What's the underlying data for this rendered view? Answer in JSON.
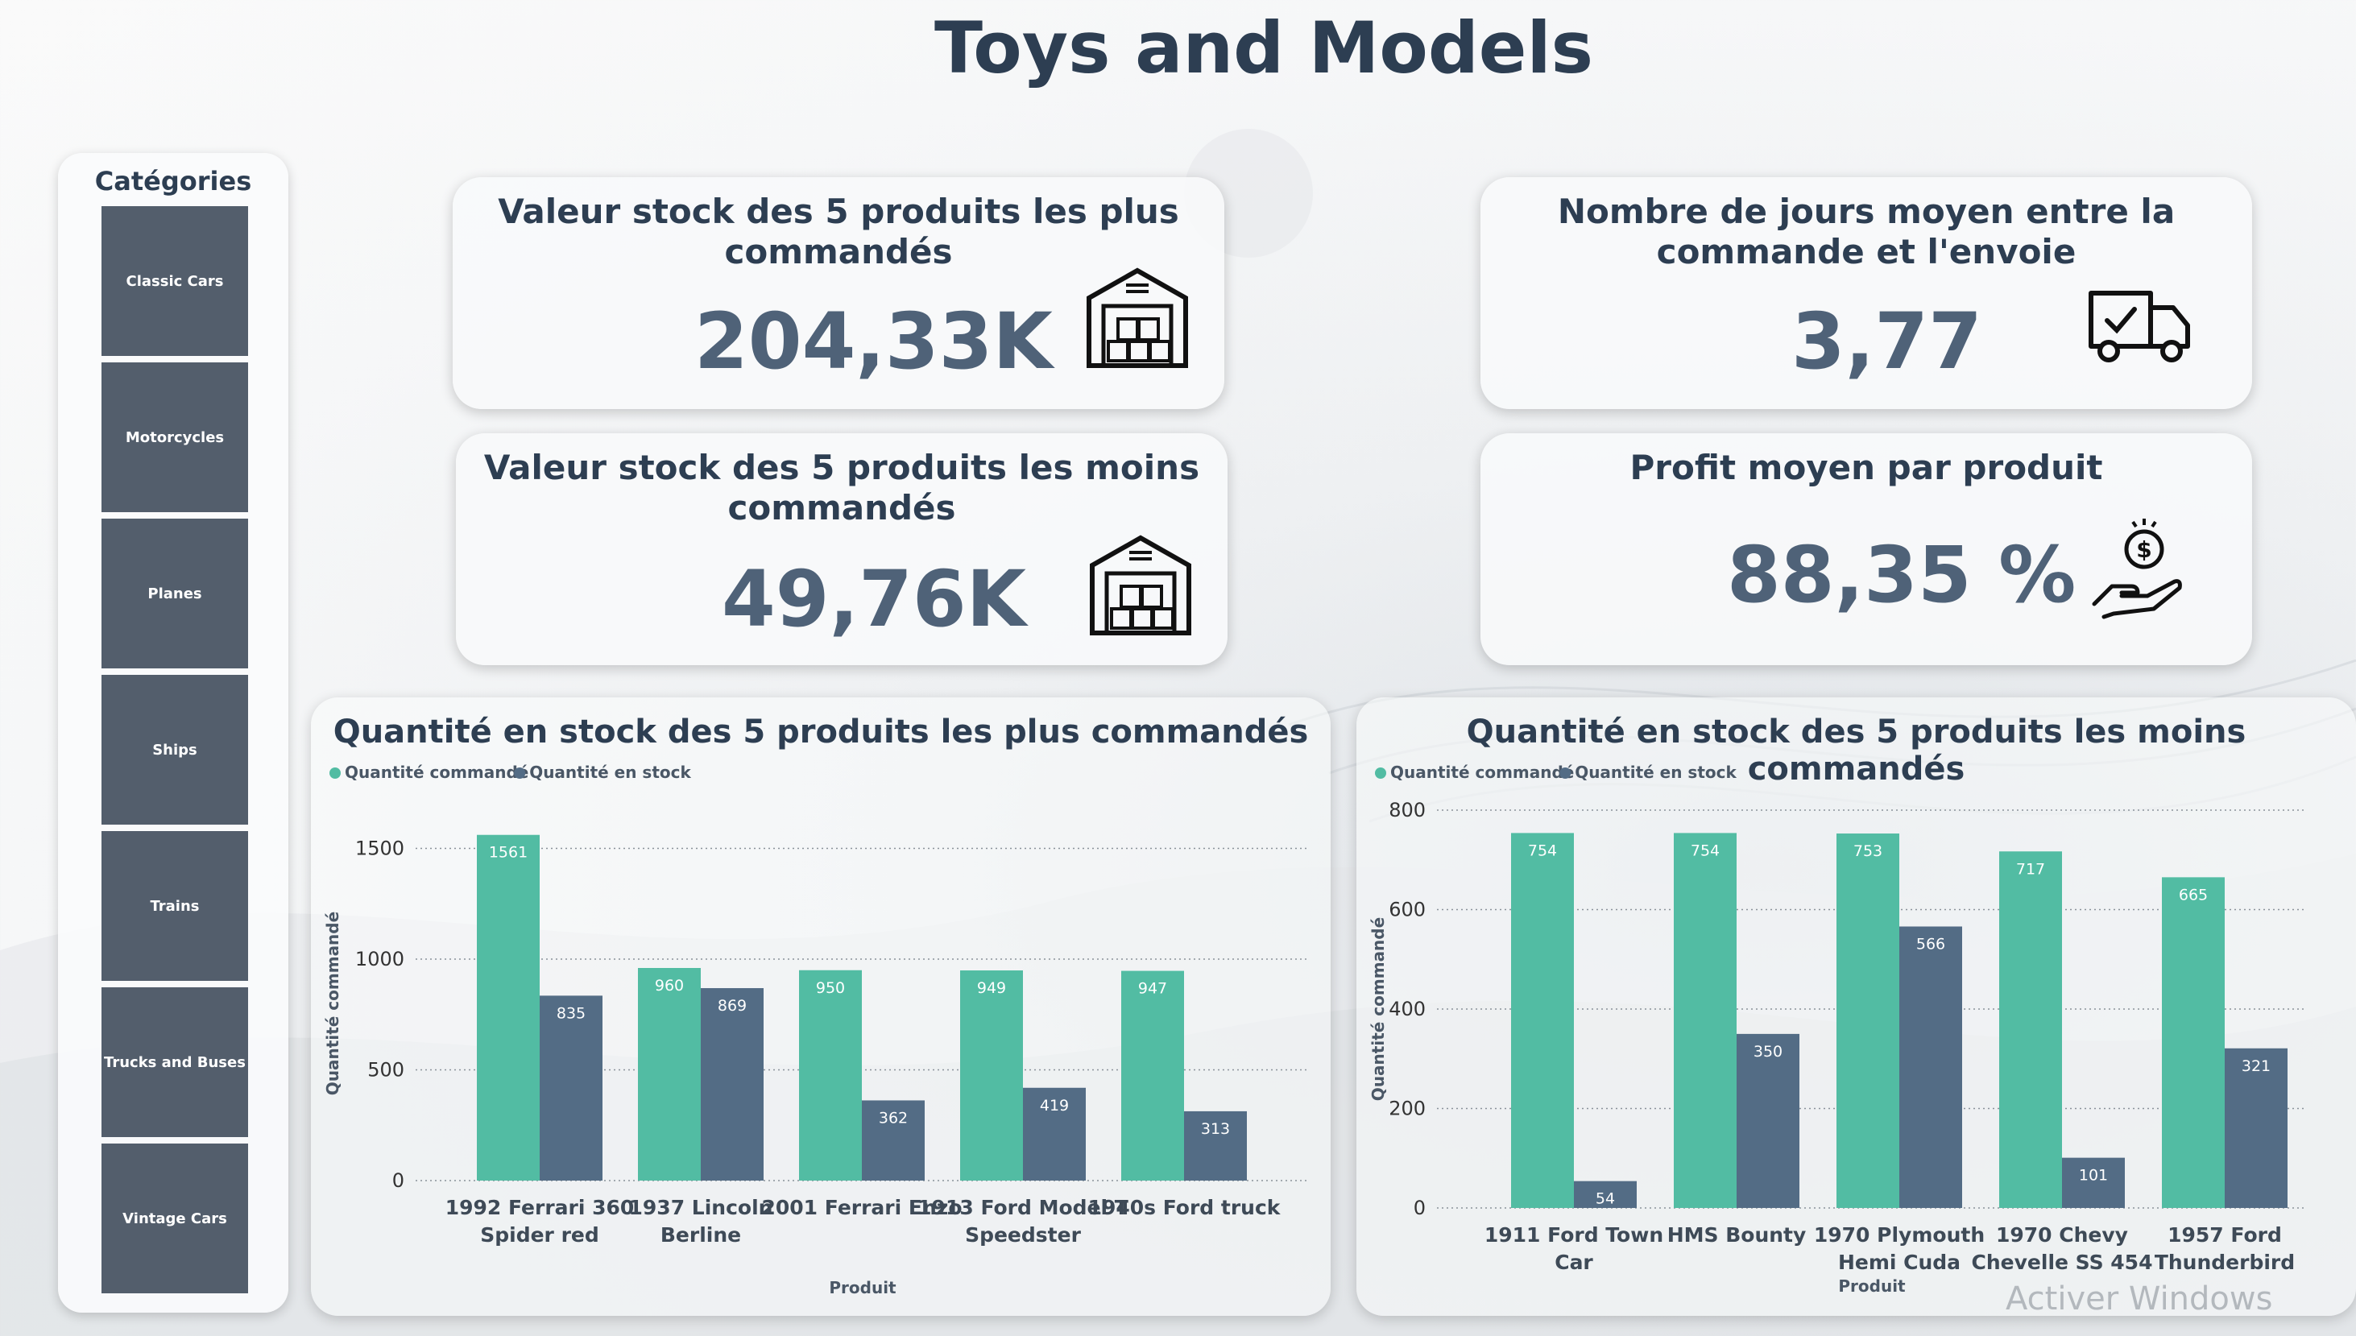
{
  "title": "Toys and Models",
  "categories": {
    "title": "Catégories",
    "items": [
      "Classic Cars",
      "Motorcycles",
      "Planes",
      "Ships",
      "Trains",
      "Trucks and Buses",
      "Vintage Cars"
    ]
  },
  "kpis": {
    "top_stock": {
      "title": "Valeur stock des 5 produits les plus commandés",
      "value": "204,33K",
      "icon": "warehouse-icon"
    },
    "bottom_stock": {
      "title": "Valeur stock des 5 produits les moins commandés",
      "value": "49,76K",
      "icon": "warehouse-icon"
    },
    "avg_days": {
      "title": "Nombre de jours moyen entre la commande et l'envoie",
      "value": "3,77",
      "icon": "delivery-truck-icon"
    },
    "avg_profit": {
      "title": "Profit moyen par produit",
      "value": "88,35 %",
      "icon": "money-hand-icon"
    }
  },
  "chart_data": [
    {
      "type": "bar",
      "title": "Quantité en stock des 5 produits les plus commandés",
      "xlabel": "Produit",
      "ylabel": "Quantité commandé",
      "ylim": [
        0,
        1600
      ],
      "yticks": [
        0,
        500,
        1000,
        1500
      ],
      "categories": [
        "1992 Ferrari 360 Spider red",
        "1937 Lincoln Berline",
        "2001 Ferrari Enzo",
        "1913 Ford Model T Speedster",
        "1940s Ford truck"
      ],
      "series": [
        {
          "name": "Quantité commandé",
          "color": "#52bca3",
          "values": [
            1561,
            960,
            950,
            949,
            947
          ]
        },
        {
          "name": "Quantité en stock",
          "color": "#536c85",
          "values": [
            835,
            869,
            362,
            419,
            313
          ]
        }
      ],
      "grid": true,
      "legend": "top-left"
    },
    {
      "type": "bar",
      "title": "Quantité en stock des 5 produits les moins commandés",
      "xlabel": "Produit",
      "ylabel": "Quantité commandé",
      "ylim": [
        0,
        800
      ],
      "yticks": [
        0,
        200,
        400,
        600,
        800
      ],
      "categories": [
        "1911 Ford Town Car",
        "HMS Bounty",
        "1970 Plymouth Hemi Cuda",
        "1970 Chevy Chevelle SS 454",
        "1957 Ford Thunderbird"
      ],
      "series": [
        {
          "name": "Quantité commandé",
          "color": "#52bca3",
          "values": [
            754,
            754,
            753,
            717,
            665
          ]
        },
        {
          "name": "Quantité en stock",
          "color": "#536c85",
          "values": [
            54,
            350,
            566,
            101,
            321
          ]
        }
      ],
      "grid": true,
      "legend": "top-left"
    }
  ],
  "watermark": "Activer Windows"
}
